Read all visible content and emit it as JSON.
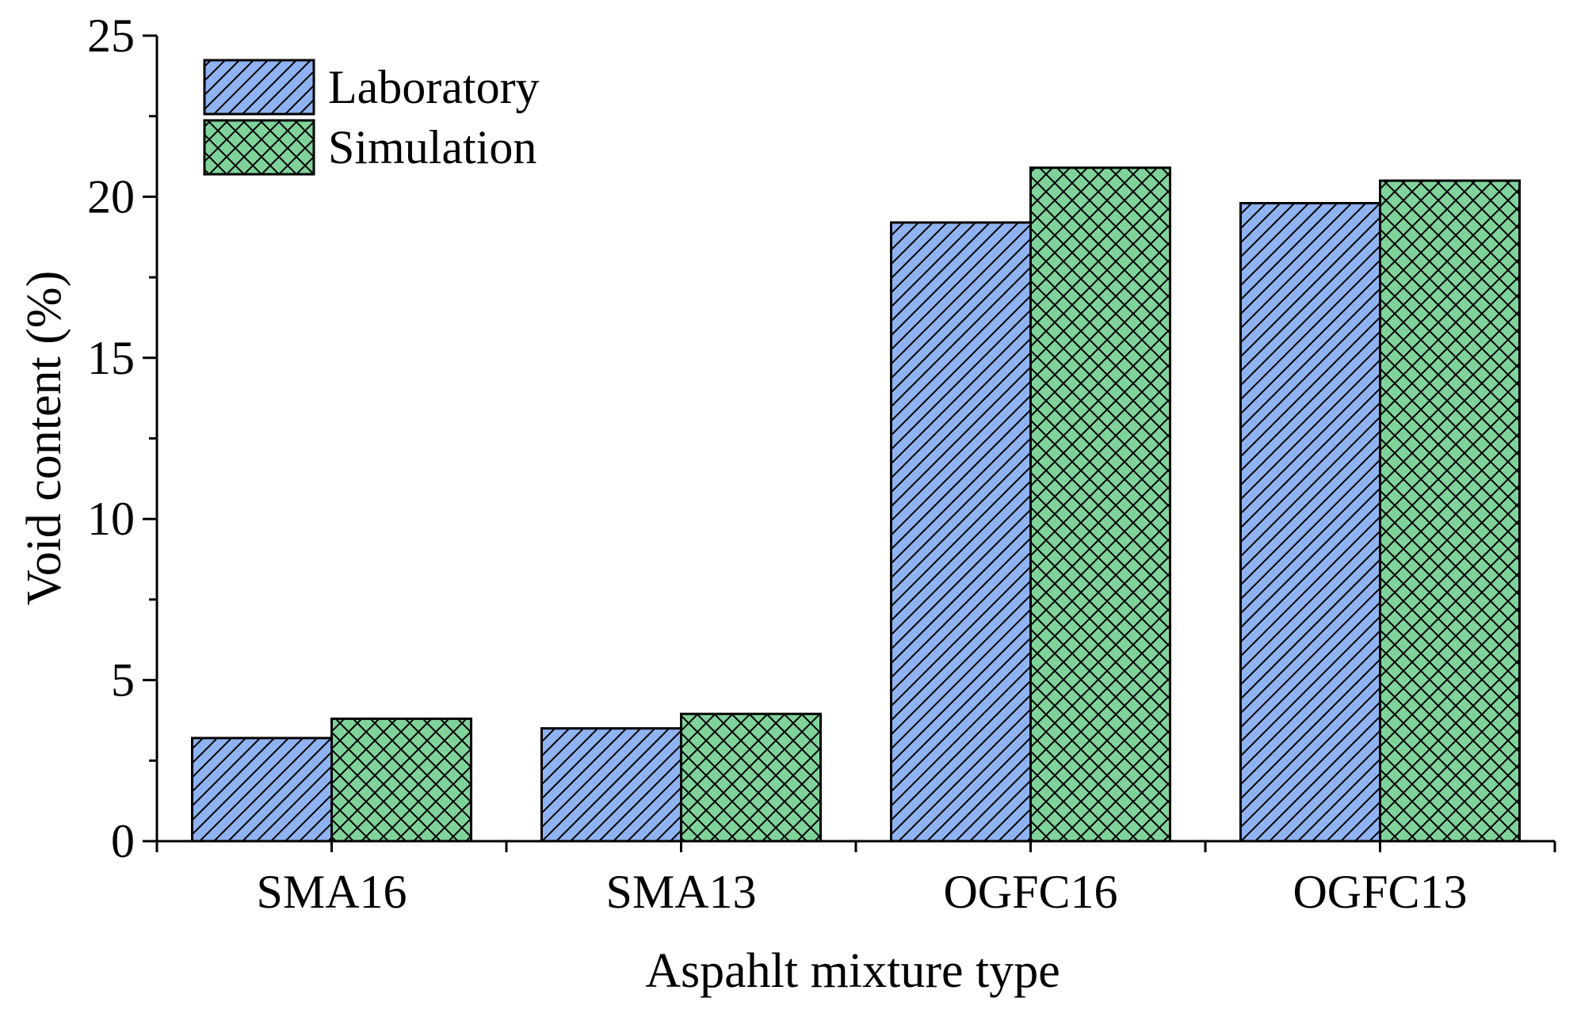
{
  "chart_data": {
    "type": "bar",
    "title": "",
    "xlabel": "Aspahlt mixture type",
    "ylabel": "Void content (%)",
    "categories": [
      "SMA16",
      "SMA13",
      "OGFC16",
      "OGFC13"
    ],
    "series": [
      {
        "name": "Laboratory",
        "values": [
          3.2,
          3.5,
          19.2,
          19.8
        ],
        "color": "#8fb3f0",
        "pattern": "diagonal"
      },
      {
        "name": "Simulation",
        "values": [
          3.8,
          3.95,
          20.9,
          20.5
        ],
        "color": "#7fd39a",
        "pattern": "crosshatch"
      }
    ],
    "ylim": [
      0,
      25
    ],
    "yticks": [
      0,
      5,
      10,
      15,
      20,
      25
    ],
    "grid": false,
    "legend_position": "top-left"
  }
}
